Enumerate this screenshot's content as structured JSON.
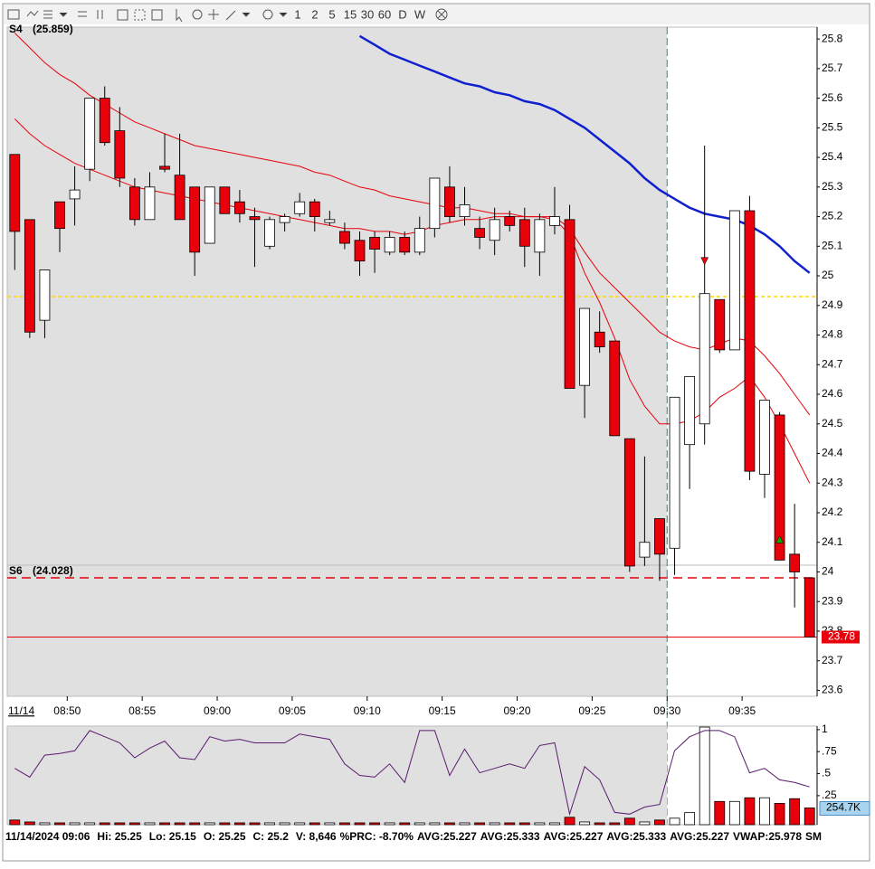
{
  "toolbar": {
    "intervals": [
      "1",
      "2",
      "5",
      "15",
      "30",
      "60",
      "D",
      "W"
    ]
  },
  "chart_data": [
    {
      "type": "candlestick",
      "x": [
        526.5,
        527.5,
        528.5,
        529.5,
        530.5,
        531.5,
        532.5,
        533.5,
        534.5,
        535.5,
        536.5,
        537.5,
        538.5,
        539.5,
        540.5,
        541.5,
        542.5,
        543.5,
        544.5,
        545.5,
        546.5,
        547.5,
        548.5,
        549.5,
        550.5,
        551.5,
        552.5,
        553.5,
        554.5,
        555.5,
        556.5,
        557.5,
        558.5,
        559.5,
        560.5,
        561.5,
        562.5,
        563.5,
        564.5,
        565.5,
        566.5,
        567.5,
        568.5,
        569.5,
        570.5,
        571.5,
        572.5,
        573.5,
        574.5,
        575.5,
        576.5,
        577.5,
        578.5,
        579.5
      ],
      "open": [
        25.41,
        25.19,
        24.85,
        25.25,
        25.26,
        25.36,
        25.6,
        25.49,
        25.3,
        25.19,
        25.37,
        25.34,
        25.3,
        25.11,
        25.3,
        25.25,
        25.2,
        25.1,
        25.18,
        25.21,
        25.25,
        25.18,
        25.15,
        25.12,
        25.13,
        25.08,
        25.13,
        25.08,
        25.16,
        25.3,
        25.2,
        25.16,
        25.12,
        25.2,
        25.19,
        25.08,
        25.17,
        25.19,
        24.63,
        24.81,
        24.78,
        24.45,
        24.05,
        24.18,
        24.08,
        24.43,
        24.5,
        24.92,
        24.75,
        25.22,
        24.33,
        24.53,
        24.06,
        23.98
      ],
      "high": [
        25.41,
        25.19,
        25.02,
        25.25,
        25.37,
        25.6,
        25.64,
        25.57,
        25.33,
        25.35,
        25.48,
        25.48,
        25.3,
        25.3,
        25.3,
        25.29,
        25.23,
        25.2,
        25.21,
        25.28,
        25.26,
        25.22,
        25.18,
        25.15,
        25.15,
        25.15,
        25.15,
        25.2,
        25.33,
        25.37,
        25.3,
        25.2,
        25.23,
        25.22,
        25.23,
        25.21,
        25.3,
        25.24,
        24.89,
        24.88,
        24.78,
        24.45,
        24.39,
        24.18,
        24.59,
        24.66,
        25.44,
        24.92,
        25.22,
        25.27,
        24.58,
        24.54,
        24.23,
        23.98
      ],
      "low": [
        25.02,
        24.79,
        24.79,
        25.08,
        25.17,
        25.32,
        25.44,
        25.3,
        25.17,
        25.19,
        25.35,
        25.19,
        25.0,
        25.11,
        25.21,
        25.18,
        25.03,
        25.09,
        25.15,
        25.2,
        25.15,
        25.17,
        25.09,
        25.0,
        25.01,
        25.07,
        25.07,
        25.07,
        25.13,
        25.18,
        25.17,
        25.09,
        25.07,
        25.15,
        25.03,
        25.0,
        25.14,
        24.62,
        24.52,
        24.74,
        24.46,
        24.0,
        24.02,
        23.97,
        23.99,
        24.28,
        24.43,
        24.74,
        24.75,
        24.31,
        24.25,
        24.04,
        23.88,
        23.78
      ],
      "close": [
        25.15,
        24.81,
        25.02,
        25.16,
        25.29,
        25.6,
        25.45,
        25.33,
        25.19,
        25.3,
        25.36,
        25.19,
        25.08,
        25.3,
        25.21,
        25.21,
        25.19,
        25.19,
        25.2,
        25.25,
        25.2,
        25.19,
        25.11,
        25.05,
        25.09,
        25.13,
        25.08,
        25.16,
        25.33,
        25.2,
        25.24,
        25.13,
        25.19,
        25.17,
        25.1,
        25.19,
        25.2,
        24.62,
        24.89,
        24.76,
        24.46,
        24.02,
        24.1,
        24.06,
        24.59,
        24.66,
        24.94,
        24.75,
        25.22,
        24.34,
        24.58,
        24.04,
        24.0,
        23.78
      ],
      "up_color": "#ffffff",
      "down_color": "#e8000b",
      "xlim": [
        526,
        580
      ],
      "xticks": [
        {
          "value": 530,
          "label": "08:50"
        },
        {
          "value": 535,
          "label": "08:55"
        },
        {
          "value": 540,
          "label": "09:00"
        },
        {
          "value": 545,
          "label": "09:05"
        },
        {
          "value": 550,
          "label": "09:10"
        },
        {
          "value": 555,
          "label": "09:15"
        },
        {
          "value": 560,
          "label": "09:20"
        },
        {
          "value": 565,
          "label": "09:25"
        },
        {
          "value": 570,
          "label": "09:30"
        },
        {
          "value": 575,
          "label": "09:35"
        }
      ],
      "ylim": [
        23.58,
        25.84
      ],
      "yticks": [
        25.8,
        25.7,
        25.6,
        25.5,
        25.4,
        25.3,
        25.2,
        25.1,
        25,
        24.9,
        24.8,
        24.7,
        24.6,
        24.5,
        24.4,
        24.3,
        24.2,
        24.1,
        24,
        23.9,
        23.8,
        23.7,
        23.6
      ],
      "series": [
        {
          "color": "#1020d0",
          "values": [
            null,
            null,
            null,
            null,
            null,
            null,
            null,
            null,
            null,
            null,
            null,
            null,
            null,
            null,
            null,
            null,
            null,
            null,
            null,
            null,
            null,
            null,
            null,
            25.81,
            25.78,
            25.75,
            25.73,
            25.71,
            25.69,
            25.67,
            25.65,
            25.64,
            25.62,
            25.61,
            25.59,
            25.58,
            25.56,
            25.53,
            25.5,
            25.46,
            25.42,
            25.38,
            25.33,
            25.29,
            25.26,
            25.23,
            25.21,
            25.2,
            25.19,
            25.17,
            25.14,
            25.1,
            25.05,
            25.01
          ]
        },
        {
          "color": "#e8000b",
          "values": [
            25.82,
            25.77,
            25.72,
            25.68,
            25.65,
            25.61,
            25.58,
            25.55,
            25.52,
            25.5,
            25.48,
            25.46,
            25.44,
            25.43,
            25.42,
            25.41,
            25.4,
            25.39,
            25.38,
            25.37,
            25.35,
            25.34,
            25.32,
            25.3,
            25.29,
            25.27,
            25.26,
            25.25,
            25.24,
            25.23,
            25.23,
            25.22,
            25.21,
            25.21,
            25.2,
            25.2,
            25.2,
            25.16,
            25.08,
            25.01,
            24.96,
            24.91,
            24.86,
            24.81,
            24.78,
            24.76,
            24.75,
            24.77,
            24.79,
            24.78,
            24.73,
            24.67,
            24.6,
            24.53
          ]
        },
        {
          "color": "#e8000b",
          "values": [
            25.53,
            25.48,
            25.44,
            25.41,
            25.38,
            25.36,
            25.34,
            25.32,
            25.3,
            25.29,
            25.28,
            25.27,
            25.26,
            25.25,
            25.24,
            25.23,
            25.22,
            25.21,
            25.2,
            25.19,
            25.18,
            25.17,
            25.16,
            25.16,
            25.15,
            25.15,
            25.14,
            25.15,
            25.17,
            25.18,
            25.19,
            25.19,
            25.2,
            25.2,
            25.2,
            25.2,
            25.19,
            25.14,
            25.01,
            24.91,
            24.79,
            24.65,
            24.56,
            24.5,
            24.5,
            24.51,
            24.54,
            24.59,
            24.62,
            24.66,
            24.59,
            24.5,
            24.4,
            24.3
          ]
        }
      ],
      "hlines": [
        {
          "value": 24.93,
          "color": "#ffd700",
          "dash": "4 3"
        },
        {
          "value": 23.98,
          "color": "#e8000b",
          "dash": "10 6"
        }
      ],
      "last_price": 23.78,
      "last_price_color": "#e8000b",
      "markers": [
        {
          "x": 572.5,
          "y": 25.05,
          "color": "#e8000b",
          "dir": "down"
        },
        {
          "x": 577.5,
          "y": 24.11,
          "color": "#00b000",
          "dir": "up"
        }
      ],
      "session_start": 570,
      "labels": {
        "s4": "S4",
        "s4_value": "(25.859)",
        "s6": "S6",
        "s6_value": "(24.028)",
        "date": "11/14"
      }
    },
    {
      "type": "oscillator",
      "ylim": [
        -0.08,
        1.04
      ],
      "yticks": [
        1,
        {
          "value": 0.75,
          "label": ".75"
        },
        {
          "value": 0.5,
          "label": ".5"
        },
        {
          "value": 0.25,
          "label": ".25"
        }
      ],
      "series": [
        {
          "color": "#5a1a6e",
          "values": [
            0.56,
            0.46,
            0.71,
            0.73,
            0.76,
            0.99,
            0.92,
            0.85,
            0.68,
            0.79,
            0.87,
            0.68,
            0.66,
            0.92,
            0.87,
            0.89,
            0.85,
            0.85,
            0.85,
            0.95,
            0.92,
            0.89,
            0.61,
            0.48,
            0.46,
            0.61,
            0.4,
            0.99,
            0.99,
            0.48,
            0.78,
            0.51,
            0.56,
            0.61,
            0.56,
            0.82,
            0.85,
            0.04,
            0.58,
            0.43,
            0.06,
            0.04,
            0.12,
            0.15,
            0.76,
            0.92,
            0.99,
            0.99,
            0.92,
            0.51,
            0.56,
            0.43,
            0.4,
            0.35
          ]
        }
      ],
      "volume": [
        71000,
        42000,
        28000,
        28000,
        28000,
        28000,
        28000,
        28000,
        28000,
        28000,
        28000,
        28000,
        28000,
        28000,
        28000,
        28000,
        28000,
        28000,
        28000,
        28000,
        28000,
        28000,
        28000,
        28000,
        28000,
        28000,
        28000,
        28000,
        28000,
        28000,
        28000,
        28000,
        28000,
        28000,
        28000,
        28000,
        28000,
        113000,
        42000,
        28000,
        28000,
        99000,
        42000,
        71000,
        99000,
        184000,
        1486000,
        354000,
        354000,
        410000,
        410000,
        325000,
        396000,
        254700
      ],
      "value_labels": [
        null,
        null,
        null,
        null,
        null,
        null,
        null,
        null,
        null,
        null,
        null,
        null,
        null,
        null,
        null,
        null,
        null,
        null,
        null,
        null,
        null,
        null,
        null,
        null,
        null,
        null,
        null,
        null,
        null,
        null,
        null,
        null,
        null,
        null,
        null,
        null,
        null,
        null,
        null,
        null,
        null,
        null,
        null,
        null,
        null,
        null,
        null,
        null,
        null,
        null,
        null,
        null,
        null,
        "254.7K"
      ],
      "volume_lim": [
        0,
        1500000
      ]
    }
  ],
  "status_bar": [
    "11/14/2024 09:06",
    "Hi: 25.25",
    "Lo: 25.15",
    "O: 25.25",
    "C: 25.2",
    "V: 8,646",
    "%PRC: -8.70%",
    "AVG:25.227",
    "AVG:25.333",
    "AVG:25.227",
    "AVG:25.333",
    "AVG:25.227",
    "VWAP:25.978",
    "SM"
  ]
}
